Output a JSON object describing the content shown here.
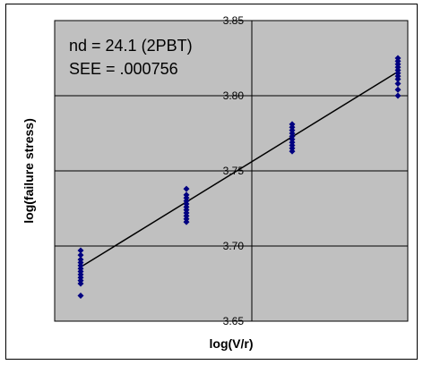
{
  "chart_data": {
    "type": "scatter",
    "title": "",
    "xlabel": "log(V/r)",
    "ylabel": "log(failure stress)",
    "ylim": [
      3.65,
      3.85
    ],
    "yticks": [
      "3.85",
      "3.80",
      "3.75",
      "3.70",
      "3.65"
    ],
    "y_gridlines": [
      3.8,
      3.75,
      3.7
    ],
    "x_ticks_labeled": false,
    "annotations": [
      "nd = 24.1 (2PBT)",
      "SEE = .000756"
    ],
    "colors": {
      "plot_bg": "#c0c0c0",
      "marker": "#000080",
      "line": "#000000",
      "grid": "#000000"
    },
    "series": [
      {
        "marker": "diamond",
        "points": [
          [
            0.0,
            3.697
          ],
          [
            0.0,
            3.694
          ],
          [
            0.0,
            3.691
          ],
          [
            0.0,
            3.689
          ],
          [
            0.0,
            3.687
          ],
          [
            0.0,
            3.685
          ],
          [
            0.0,
            3.683
          ],
          [
            0.0,
            3.681
          ],
          [
            0.0,
            3.679
          ],
          [
            0.0,
            3.677
          ],
          [
            0.0,
            3.675
          ],
          [
            0.0,
            3.667
          ],
          [
            1.0,
            3.738
          ],
          [
            1.0,
            3.734
          ],
          [
            1.0,
            3.732
          ],
          [
            1.0,
            3.73
          ],
          [
            1.0,
            3.728
          ],
          [
            1.0,
            3.726
          ],
          [
            1.0,
            3.724
          ],
          [
            1.0,
            3.722
          ],
          [
            1.0,
            3.72
          ],
          [
            1.0,
            3.718
          ],
          [
            1.0,
            3.716
          ],
          [
            2.0,
            3.781
          ],
          [
            2.0,
            3.779
          ],
          [
            2.0,
            3.777
          ],
          [
            2.0,
            3.775
          ],
          [
            2.0,
            3.773
          ],
          [
            2.0,
            3.771
          ],
          [
            2.0,
            3.769
          ],
          [
            2.0,
            3.767
          ],
          [
            2.0,
            3.765
          ],
          [
            2.0,
            3.763
          ],
          [
            3.0,
            3.825
          ],
          [
            3.0,
            3.823
          ],
          [
            3.0,
            3.821
          ],
          [
            3.0,
            3.819
          ],
          [
            3.0,
            3.817
          ],
          [
            3.0,
            3.815
          ],
          [
            3.0,
            3.813
          ],
          [
            3.0,
            3.811
          ],
          [
            3.0,
            3.808
          ],
          [
            3.0,
            3.804
          ],
          [
            3.0,
            3.8
          ]
        ]
      }
    ],
    "trendline": {
      "type": "linear",
      "from": [
        0.0,
        3.686
      ],
      "to": [
        3.0,
        3.816
      ]
    }
  }
}
